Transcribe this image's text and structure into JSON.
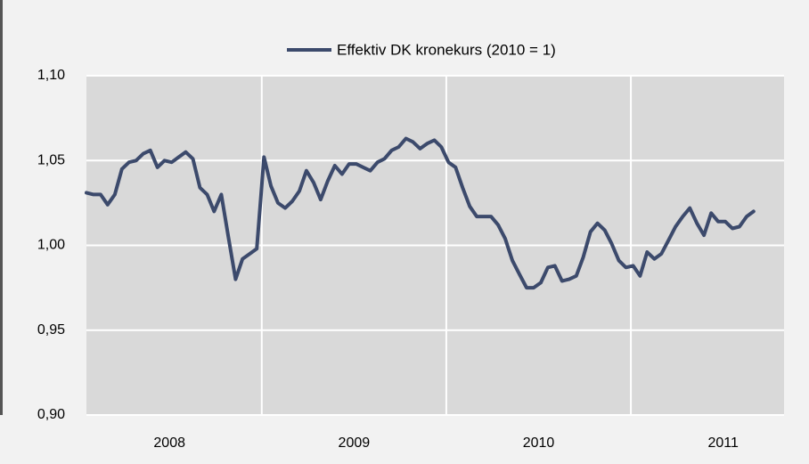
{
  "chart_data": {
    "type": "line",
    "x": [
      2008.05,
      2008.088,
      2008.127,
      2008.165,
      2008.204,
      2008.242,
      2008.281,
      2008.319,
      2008.358,
      2008.396,
      2008.435,
      2008.473,
      2008.512,
      2008.55,
      2008.588,
      2008.627,
      2008.665,
      2008.704,
      2008.742,
      2008.781,
      2008.819,
      2008.858,
      2008.896,
      2008.935,
      2008.973,
      2009.012,
      2009.05,
      2009.088,
      2009.127,
      2009.165,
      2009.204,
      2009.242,
      2009.281,
      2009.319,
      2009.358,
      2009.396,
      2009.435,
      2009.473,
      2009.512,
      2009.55,
      2009.588,
      2009.627,
      2009.665,
      2009.704,
      2009.742,
      2009.781,
      2009.819,
      2009.858,
      2009.896,
      2009.935,
      2009.973,
      2010.012,
      2010.05,
      2010.088,
      2010.127,
      2010.165,
      2010.204,
      2010.242,
      2010.281,
      2010.319,
      2010.358,
      2010.396,
      2010.435,
      2010.473,
      2010.512,
      2010.55,
      2010.588,
      2010.627,
      2010.665,
      2010.704,
      2010.742,
      2010.781,
      2010.819,
      2010.858,
      2010.896,
      2010.935,
      2010.973,
      2011.012,
      2011.05,
      2011.088,
      2011.127,
      2011.165,
      2011.204,
      2011.242,
      2011.281,
      2011.319,
      2011.358,
      2011.396,
      2011.435,
      2011.473,
      2011.512,
      2011.55,
      2011.588,
      2011.627,
      2011.665
    ],
    "series": [
      {
        "name": "Effektiv DK kronekurs (2010 = 1)",
        "color": "#3c4a6c",
        "values": [
          1.031,
          1.03,
          1.03,
          1.024,
          1.03,
          1.045,
          1.049,
          1.05,
          1.054,
          1.056,
          1.046,
          1.05,
          1.049,
          1.052,
          1.055,
          1.051,
          1.034,
          1.03,
          1.02,
          1.03,
          1.005,
          0.98,
          0.992,
          0.995,
          0.998,
          1.052,
          1.035,
          1.025,
          1.022,
          1.026,
          1.032,
          1.044,
          1.037,
          1.027,
          1.038,
          1.047,
          1.042,
          1.048,
          1.048,
          1.046,
          1.044,
          1.049,
          1.051,
          1.056,
          1.058,
          1.063,
          1.061,
          1.057,
          1.06,
          1.062,
          1.058,
          1.049,
          1.046,
          1.034,
          1.023,
          1.017,
          1.017,
          1.017,
          1.012,
          1.004,
          0.991,
          0.983,
          0.975,
          0.975,
          0.978,
          0.987,
          0.988,
          0.979,
          0.98,
          0.982,
          0.993,
          1.008,
          1.013,
          1.009,
          1.001,
          0.991,
          0.987,
          0.988,
          0.982,
          0.996,
          0.992,
          0.995,
          1.003,
          1.011,
          1.017,
          1.022,
          1.013,
          1.006,
          1.019,
          1.014,
          1.014,
          1.01,
          1.011,
          1.017,
          1.02
        ]
      }
    ],
    "xlim": [
      2008.05,
      2011.83
    ],
    "xticks": [
      {
        "value": 2008.5,
        "label": "2008"
      },
      {
        "value": 2009.5,
        "label": "2009"
      },
      {
        "value": 2010.5,
        "label": "2010"
      },
      {
        "value": 2011.5,
        "label": "2011"
      }
    ],
    "x_grid": [
      2009,
      2010,
      2011
    ],
    "ylim": [
      0.9,
      1.1
    ],
    "yticks": [
      {
        "value": 0.9,
        "label": "0,90"
      },
      {
        "value": 0.95,
        "label": "0,95"
      },
      {
        "value": 1.0,
        "label": "1,00"
      },
      {
        "value": 1.05,
        "label": "1,05"
      },
      {
        "value": 1.1,
        "label": "1,10"
      }
    ],
    "grid": true,
    "legend": "top"
  }
}
